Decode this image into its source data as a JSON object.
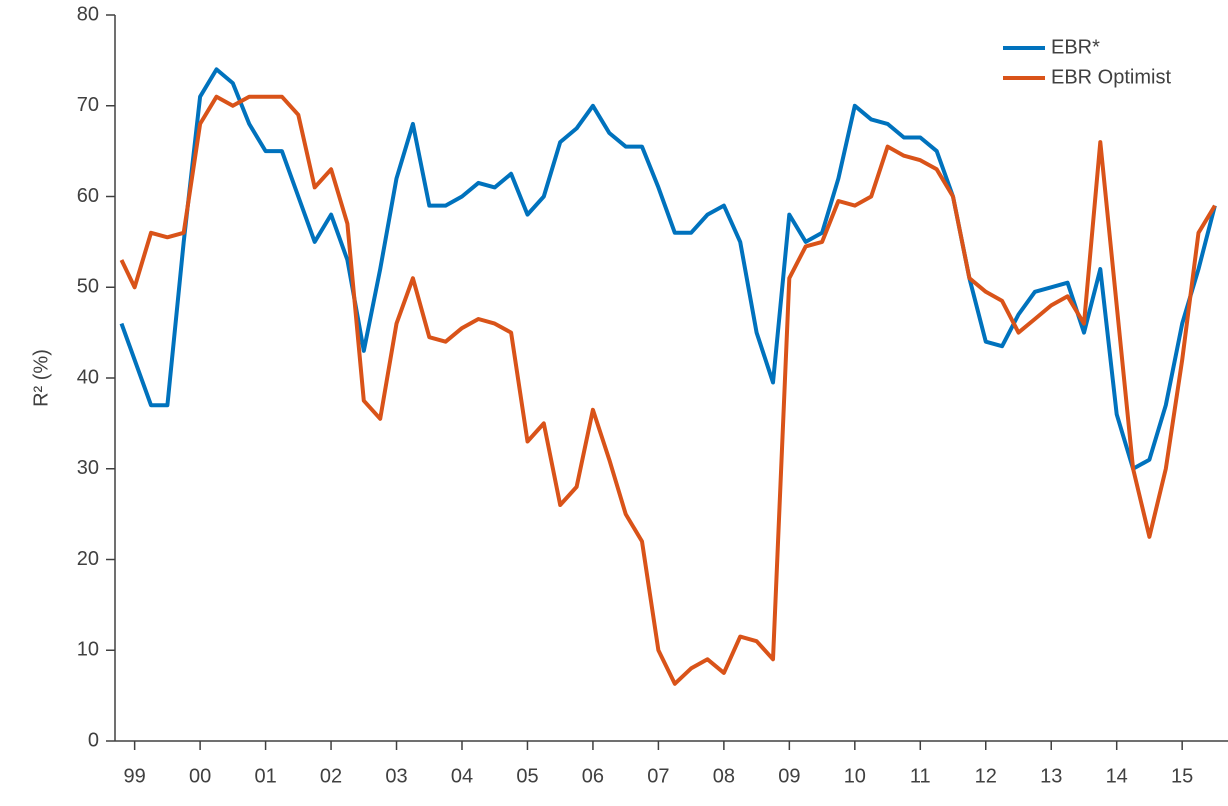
{
  "chart_data": {
    "type": "line",
    "ylabel": "R² (%)",
    "x": [
      1998.8,
      1999,
      1999.25,
      1999.5,
      1999.75,
      2000,
      2000.25,
      2000.5,
      2000.75,
      2001,
      2001.25,
      2001.5,
      2001.75,
      2002,
      2002.25,
      2002.5,
      2002.75,
      2003,
      2003.25,
      2003.5,
      2003.75,
      2004,
      2004.25,
      2004.5,
      2004.75,
      2005,
      2005.25,
      2005.5,
      2005.75,
      2006,
      2006.25,
      2006.5,
      2006.75,
      2007,
      2007.25,
      2007.5,
      2007.75,
      2008,
      2008.25,
      2008.5,
      2008.75,
      2009,
      2009.25,
      2009.5,
      2009.75,
      2010,
      2010.25,
      2010.5,
      2010.75,
      2011,
      2011.25,
      2011.5,
      2011.75,
      2012,
      2012.25,
      2012.5,
      2012.75,
      2013,
      2013.25,
      2013.5,
      2013.75,
      2014,
      2014.25,
      2014.5,
      2014.75,
      2015,
      2015.25,
      2015.5
    ],
    "series": [
      {
        "name": "EBR*",
        "color": "#0072bd",
        "values": [
          46,
          42,
          37,
          37,
          55,
          71,
          74,
          72.5,
          68,
          65,
          65,
          60,
          55,
          58,
          53,
          43,
          52,
          62,
          68,
          59,
          59,
          60,
          61.5,
          61,
          62.5,
          58,
          60,
          66,
          67.5,
          70,
          67,
          65.5,
          65.5,
          61,
          56,
          56,
          58,
          59,
          55,
          45,
          39.5,
          58,
          55,
          56,
          62,
          70,
          68.5,
          68,
          66.5,
          66.5,
          65,
          60,
          51,
          44,
          43.5,
          47,
          49.5,
          50,
          50.5,
          45,
          52,
          36,
          30,
          31,
          37,
          46,
          52,
          59
        ]
      },
      {
        "name": "EBR Optimist",
        "color": "#d95319",
        "values": [
          53,
          50,
          56,
          55.5,
          56,
          68,
          71,
          70,
          71,
          71,
          71,
          69,
          61,
          63,
          57,
          37.5,
          35.5,
          46,
          51,
          44.5,
          44,
          45.5,
          46.5,
          46,
          45,
          33,
          35,
          26,
          28,
          36.5,
          31,
          25,
          22,
          10,
          6.3,
          8,
          9,
          7.5,
          11.5,
          11,
          9,
          51,
          54.5,
          55,
          59.5,
          59,
          60,
          65.5,
          64.5,
          64,
          63,
          60,
          51,
          49.5,
          48.5,
          45,
          46.5,
          48,
          49,
          46,
          66,
          48,
          30,
          22.5,
          30,
          42,
          56,
          59
        ]
      }
    ],
    "xlim": [
      1998.7,
      2015.7
    ],
    "xticks": [
      {
        "value": 1999,
        "label": "99"
      },
      {
        "value": 2000,
        "label": "00"
      },
      {
        "value": 2001,
        "label": "01"
      },
      {
        "value": 2002,
        "label": "02"
      },
      {
        "value": 2003,
        "label": "03"
      },
      {
        "value": 2004,
        "label": "04"
      },
      {
        "value": 2005,
        "label": "05"
      },
      {
        "value": 2006,
        "label": "06"
      },
      {
        "value": 2007,
        "label": "07"
      },
      {
        "value": 2008,
        "label": "08"
      },
      {
        "value": 2009,
        "label": "09"
      },
      {
        "value": 2010,
        "label": "10"
      },
      {
        "value": 2011,
        "label": "11"
      },
      {
        "value": 2012,
        "label": "12"
      },
      {
        "value": 2013,
        "label": "13"
      },
      {
        "value": 2014,
        "label": "14"
      },
      {
        "value": 2015,
        "label": "15"
      }
    ],
    "ylim": [
      0,
      80
    ],
    "yticks": [
      0,
      10,
      20,
      30,
      40,
      50,
      60,
      70,
      80
    ],
    "grid": false,
    "legend": "top-right"
  }
}
